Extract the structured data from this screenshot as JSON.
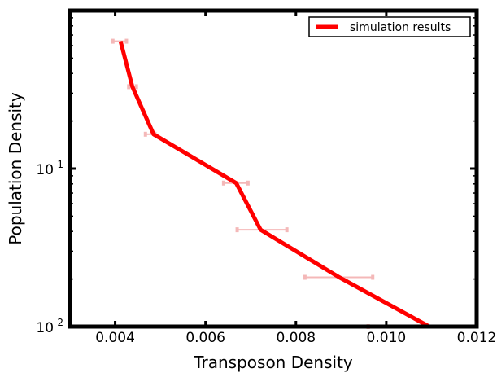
{
  "chart_data": {
    "type": "line",
    "xlabel": "Transposon Density",
    "ylabel": "Population Density",
    "xlim": [
      0.003,
      0.012
    ],
    "ylim": [
      0.01,
      1.0
    ],
    "yscale": "log",
    "x_ticks": [
      "0.004",
      "0.006",
      "0.008",
      "0.010",
      "0.012"
    ],
    "y_ticks": [
      {
        "base": "10",
        "exp": "-1",
        "value": 0.1
      },
      {
        "base": "10",
        "exp": "-2",
        "value": 0.01
      }
    ],
    "legend": {
      "position": "top-right"
    },
    "series": [
      {
        "name": "simulation results",
        "color": "#ff0000",
        "x": [
          0.00412,
          0.00438,
          0.00485,
          0.00668,
          0.00722,
          0.00896,
          0.01095
        ],
        "y": [
          0.64,
          0.33,
          0.165,
          0.081,
          0.041,
          0.0205,
          0.01
        ],
        "xerr_low": [
          0.00395,
          0.0043,
          0.00467,
          0.0064,
          0.0067,
          0.0082,
          0.0096
        ],
        "xerr_high": [
          0.00425,
          0.00447,
          0.00488,
          0.00694,
          0.0078,
          0.0097,
          0.0096
        ]
      }
    ],
    "errorbar_color": "#f4b8b8"
  }
}
